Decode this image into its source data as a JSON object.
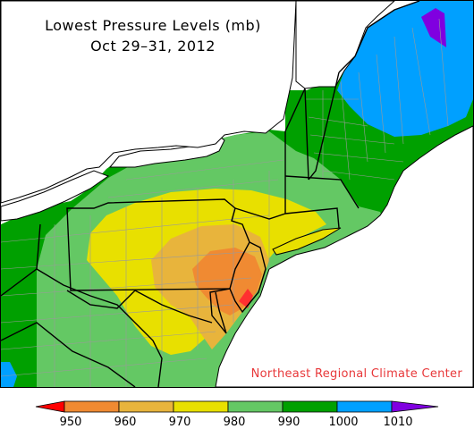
{
  "title": {
    "line1": "Lowest Pressure Levels (mb)",
    "line2": "Oct 29–31, 2012"
  },
  "credit": "Northeast Regional Climate Center",
  "legend": {
    "unit": "mb",
    "ticks": [
      "950",
      "960",
      "970",
      "980",
      "990",
      "1000",
      "1010"
    ],
    "colors": [
      "#ff0000",
      "#f08a32",
      "#e8b43c",
      "#e8e000",
      "#64c864",
      "#00a000",
      "#00a0ff",
      "#8000e0"
    ]
  },
  "map": {
    "water_color": "#ffffff",
    "border_color": "#000000",
    "county_line_color": "#9a9a9a",
    "region_labels_shown": false
  }
}
